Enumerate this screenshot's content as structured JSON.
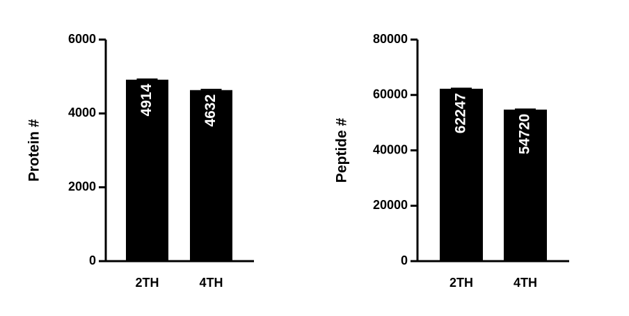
{
  "chart_data": [
    {
      "type": "bar",
      "ylabel": "Protein #",
      "categories": [
        "2TH",
        "4TH"
      ],
      "values": [
        4914,
        4632
      ],
      "errors": [
        15,
        15
      ],
      "color": "#000000",
      "ylim": [
        0,
        6000
      ],
      "yticks": [
        0,
        2000,
        4000,
        6000
      ]
    },
    {
      "type": "bar",
      "ylabel": "Peptide #",
      "categories": [
        "2TH",
        "4TH"
      ],
      "values": [
        62247,
        54720
      ],
      "errors": [
        150,
        150
      ],
      "color": "#000000",
      "ylim": [
        0,
        80000
      ],
      "yticks": [
        0,
        20000,
        40000,
        60000,
        80000
      ]
    }
  ]
}
